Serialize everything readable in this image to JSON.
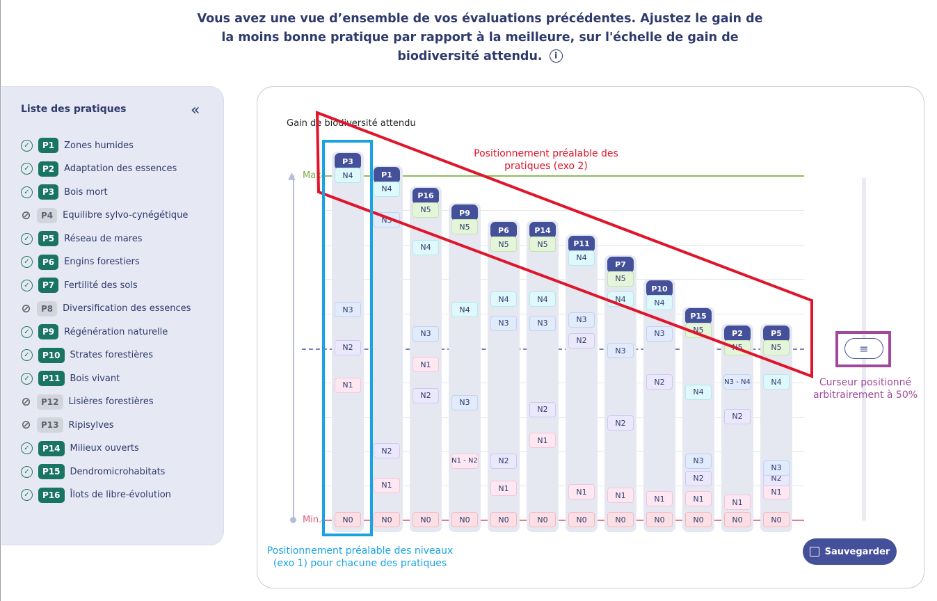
{
  "header": {
    "instructions": "Vous avez une vue d’ensemble de vos évaluations précédentes. Ajustez le gain de la moins bonne pratique par rapport à la meilleure, sur l'échelle de gain de biodiversité attendu."
  },
  "sidebar": {
    "title": "Liste des pratiques",
    "items": [
      {
        "code": "P1",
        "label": "Zones humides",
        "enabled": true
      },
      {
        "code": "P2",
        "label": "Adaptation des essences",
        "enabled": true
      },
      {
        "code": "P3",
        "label": "Bois mort",
        "enabled": true
      },
      {
        "code": "P4",
        "label": "Equilibre sylvo-cynégétique",
        "enabled": false
      },
      {
        "code": "P5",
        "label": "Réseau de mares",
        "enabled": true
      },
      {
        "code": "P6",
        "label": "Engins forestiers",
        "enabled": true
      },
      {
        "code": "P7",
        "label": "Fertilité des sols",
        "enabled": true
      },
      {
        "code": "P8",
        "label": "Diversification des essences",
        "enabled": false
      },
      {
        "code": "P9",
        "label": "Régénération naturelle",
        "enabled": true
      },
      {
        "code": "P10",
        "label": "Strates forestières",
        "enabled": true
      },
      {
        "code": "P11",
        "label": "Bois vivant",
        "enabled": true
      },
      {
        "code": "P12",
        "label": "Lisières forestières",
        "enabled": false
      },
      {
        "code": "P13",
        "label": "Ripisylves",
        "enabled": false
      },
      {
        "code": "P14",
        "label": "Milieux ouverts",
        "enabled": true
      },
      {
        "code": "P15",
        "label": "Dendromicrohabitats",
        "enabled": true
      },
      {
        "code": "P16",
        "label": "Îlots de libre-évolution",
        "enabled": true
      }
    ]
  },
  "chart": {
    "axis_title": "Gain de biodiversité attendu",
    "max_label": "Max.",
    "min_label": "Min.",
    "columns": [
      {
        "code": "P3",
        "levels": [
          [
            "N0",
            0
          ],
          [
            "N1",
            0.39
          ],
          [
            "N2",
            0.5
          ],
          [
            "N3",
            0.61
          ],
          [
            "N4",
            1.0
          ]
        ]
      },
      {
        "code": "P1",
        "levels": [
          [
            "N0",
            0
          ],
          [
            "N1",
            0.1
          ],
          [
            "N2",
            0.2
          ],
          [
            "N3",
            0.87
          ],
          [
            "N4",
            0.96
          ]
        ]
      },
      {
        "code": "P16",
        "levels": [
          [
            "N0",
            0
          ],
          [
            "N1",
            0.45
          ],
          [
            "N2",
            0.36
          ],
          [
            "N3",
            0.54
          ],
          [
            "N4",
            0.79
          ],
          [
            "N5",
            0.9
          ]
        ]
      },
      {
        "code": "P9",
        "levels": [
          [
            "N0",
            0
          ],
          [
            "N1 - N2",
            0.17
          ],
          [
            "N3",
            0.34
          ],
          [
            "N4",
            0.61
          ],
          [
            "N5",
            0.85
          ]
        ]
      },
      {
        "code": "P6",
        "levels": [
          [
            "N0",
            0
          ],
          [
            "N1",
            0.09
          ],
          [
            "N2",
            0.17
          ],
          [
            "N3",
            0.57
          ],
          [
            "N4",
            0.64
          ],
          [
            "N5",
            0.8
          ]
        ]
      },
      {
        "code": "P14",
        "levels": [
          [
            "N0",
            0
          ],
          [
            "N1",
            0.23
          ],
          [
            "N2",
            0.32
          ],
          [
            "N3",
            0.57
          ],
          [
            "N4",
            0.64
          ],
          [
            "N5",
            0.8
          ]
        ]
      },
      {
        "code": "P11",
        "levels": [
          [
            "N0",
            0
          ],
          [
            "N1",
            0.08
          ],
          [
            "N2",
            0.52
          ],
          [
            "N3",
            0.58
          ],
          [
            "N4",
            0.76
          ]
        ]
      },
      {
        "code": "P7",
        "levels": [
          [
            "N0",
            0
          ],
          [
            "N1",
            0.07
          ],
          [
            "N2",
            0.28
          ],
          [
            "N3",
            0.49
          ],
          [
            "N4",
            0.64
          ],
          [
            "N5",
            0.7
          ]
        ]
      },
      {
        "code": "P10",
        "levels": [
          [
            "N0",
            0
          ],
          [
            "N1",
            0.06
          ],
          [
            "N2",
            0.4
          ],
          [
            "N3",
            0.54
          ],
          [
            "N4",
            0.63
          ]
        ]
      },
      {
        "code": "P15",
        "levels": [
          [
            "N0",
            0
          ],
          [
            "N1",
            0.06
          ],
          [
            "N2",
            0.12
          ],
          [
            "N3",
            0.17
          ],
          [
            "N4",
            0.37
          ],
          [
            "N5",
            0.55
          ]
        ]
      },
      {
        "code": "P2",
        "levels": [
          [
            "N0",
            0
          ],
          [
            "N1",
            0.05
          ],
          [
            "N2",
            0.3
          ],
          [
            "N3 - N4",
            0.4
          ],
          [
            "N5",
            0.5
          ]
        ]
      },
      {
        "code": "P5",
        "levels": [
          [
            "N0",
            0
          ],
          [
            "N1",
            0.08
          ],
          [
            "N2",
            0.12
          ],
          [
            "N3",
            0.15
          ],
          [
            "N4",
            0.4
          ],
          [
            "N5",
            0.5
          ]
        ]
      }
    ]
  },
  "slider": {
    "value_percent": 50,
    "handle_icon": "menu-icon"
  },
  "annotations": {
    "red": "Positionnement préalable des pratiques (exo 2)",
    "blue": "Positionnement préalable des niveaux (exo 1) pour chacune des pratiques",
    "purple": "Curseur positionné arbitrairement à 50%"
  },
  "save_button": {
    "label": "Sauvegarder"
  }
}
